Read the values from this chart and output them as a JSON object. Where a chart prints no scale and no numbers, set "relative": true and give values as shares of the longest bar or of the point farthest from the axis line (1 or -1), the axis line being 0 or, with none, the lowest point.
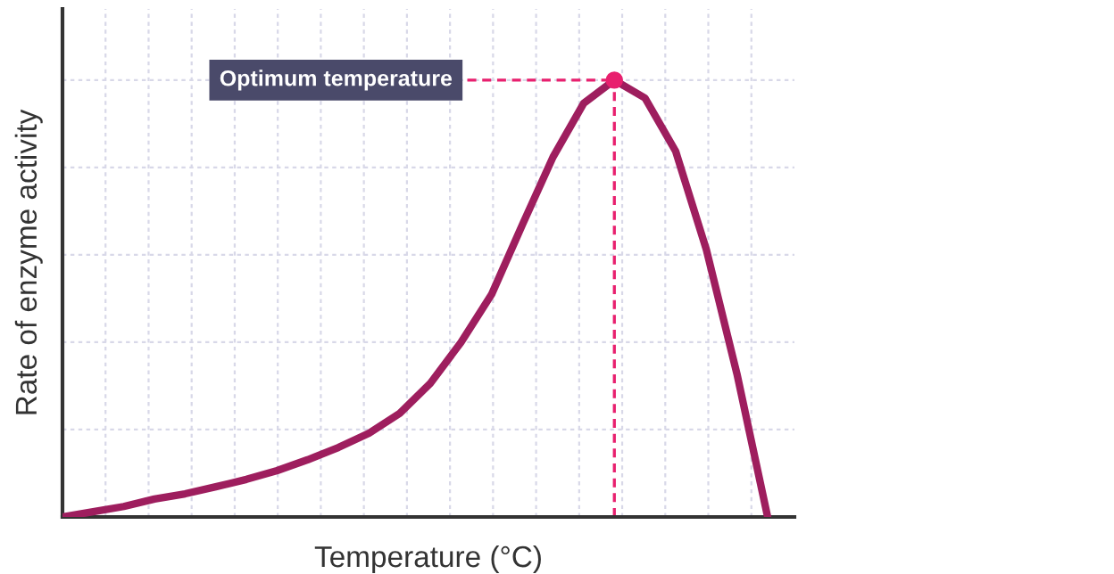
{
  "chart_data": {
    "type": "line",
    "relative": true,
    "xlabel": "Temperature (°C)",
    "ylabel": "Rate of enzyme activity",
    "grid": true,
    "marker": "none",
    "line_style": "solid",
    "categories": [
      null,
      null,
      null,
      null,
      null,
      null,
      null,
      null,
      null,
      null,
      null,
      null,
      null,
      null,
      null,
      null,
      null,
      null,
      null,
      null,
      null,
      null,
      null,
      null
    ],
    "series": [
      {
        "color": "#9e1e5e",
        "values": [
          0,
          0.012,
          0.024,
          0.041,
          0.053,
          0.069,
          0.086,
          0.106,
          0.131,
          0.159,
          0.192,
          0.237,
          0.306,
          0.4,
          0.51,
          0.669,
          0.824,
          0.947,
          1,
          0.959,
          0.837,
          0.612,
          0.327,
          0
        ]
      }
    ],
    "annotations": [
      "Optimum temperature"
    ]
  }
}
